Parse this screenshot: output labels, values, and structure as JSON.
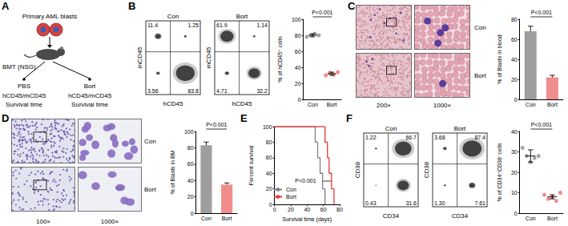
{
  "panels": [
    "A",
    "B",
    "C",
    "D",
    "E",
    "F"
  ],
  "diagram": {
    "source": "Primary AML blasts",
    "recipient": "BMT (NSG)",
    "arms": [
      {
        "treatment": "PBS",
        "readout": "hCD45/mCD45",
        "outcome": "Survival time"
      },
      {
        "treatment": "Bort",
        "readout": "hCD45/mCD45",
        "outcome": "Survival time"
      }
    ]
  },
  "flow": [
    {
      "xlabel": "hCD45",
      "ylabel": "mCD45",
      "plots": [
        {
          "title": "Con",
          "quadrants": {
            "upper_left": "11.4",
            "upper_right": "1.25",
            "lower_left": "3.56",
            "lower_right": "83.8"
          }
        },
        {
          "title": "Bort",
          "quadrants": {
            "upper_left": "61.9",
            "upper_right": "1.14",
            "lower_left": "4.71",
            "lower_right": "32.2"
          }
        }
      ]
    },
    {
      "xlabel": "CD34",
      "ylabel": "CD38",
      "plots": [
        {
          "title": "Con",
          "quadrants": {
            "upper_left": "1.22",
            "upper_right": "66.7",
            "lower_left": "0.43",
            "lower_right": "31.6"
          }
        },
        {
          "title": "Bort",
          "quadrants": {
            "upper_left": "3.68",
            "upper_right": "87.4",
            "lower_left": "1.30",
            "lower_right": "7.61"
          }
        }
      ]
    }
  ],
  "micrographs": [
    {
      "tissue": "blood",
      "magnifications": [
        "200×",
        "1000×"
      ],
      "rows": [
        "Con",
        "Bort"
      ]
    },
    {
      "tissue": "BM",
      "magnifications": [
        "100×",
        "1000×"
      ],
      "rows": [
        "Con",
        "Bort"
      ]
    }
  ],
  "chart_data": [
    {
      "type": "scatter",
      "ylabel": "% of hCD45⁺ cells",
      "categories": [
        "Con",
        "Bort"
      ],
      "colors": [
        "#8c8c8c",
        "#ef6b6b"
      ],
      "marker": "circle",
      "values": [
        80,
        32
      ],
      "errors": [
        2,
        2
      ],
      "points": [
        [
          78,
          80,
          82,
          80
        ],
        [
          30,
          33,
          31,
          34
        ]
      ],
      "ylim": [
        0,
        100
      ],
      "yticks": [
        0,
        20,
        40,
        60,
        80,
        100
      ],
      "grid": false,
      "annotation": "P<0.001"
    },
    {
      "type": "bar",
      "ylabel": "% of Blasts in blood",
      "categories": [
        "Con",
        "Bort"
      ],
      "colors": [
        "#9e9e9e",
        "#f08c8c"
      ],
      "values": [
        68,
        22
      ],
      "errors": [
        5,
        2
      ],
      "ylim": [
        0,
        80
      ],
      "yticks": [
        0,
        20,
        40,
        60,
        80
      ],
      "grid": false,
      "annotation": "P<0.001"
    },
    {
      "type": "bar",
      "ylabel": "% of Blasts in BM",
      "categories": [
        "Con",
        "Bort"
      ],
      "colors": [
        "#9e9e9e",
        "#f08c8c"
      ],
      "values": [
        83,
        35
      ],
      "errors": [
        4,
        2
      ],
      "ylim": [
        0,
        100
      ],
      "yticks": [
        0,
        20,
        40,
        60,
        80,
        100
      ],
      "grid": false,
      "annotation": "P<0.001"
    },
    {
      "type": "line",
      "xlabel": "Survival time (days)",
      "ylabel": "Percent survival",
      "line_style": "step",
      "legend": "lower left",
      "grid": false,
      "annotation": "P<0.001",
      "xlim": [
        0,
        80
      ],
      "xticks": [
        0,
        20,
        40,
        60,
        80
      ],
      "ylim": [
        0,
        100
      ],
      "yticks": [
        0,
        20,
        40,
        60,
        80,
        100
      ],
      "series": [
        {
          "name": "Con",
          "color": "#808080",
          "x": [
            0,
            50,
            53,
            56,
            59,
            62
          ],
          "values": [
            100,
            80,
            60,
            40,
            20,
            0
          ]
        },
        {
          "name": "Bort",
          "color": "#e53935",
          "x": [
            0,
            62,
            65,
            67,
            70,
            73
          ],
          "values": [
            100,
            80,
            60,
            40,
            20,
            0
          ]
        }
      ]
    },
    {
      "type": "scatter",
      "ylabel": "% of CD34⁺CD38⁻cells",
      "categories": [
        "Con",
        "Bort"
      ],
      "colors": [
        "#8c8c8c",
        "#ef6b6b"
      ],
      "marker": "circle",
      "values": [
        28,
        8
      ],
      "errors": [
        3,
        1
      ],
      "points": [
        [
          32,
          28,
          25,
          27,
          28
        ],
        [
          9,
          7,
          8,
          6,
          10
        ]
      ],
      "ylim": [
        0,
        40
      ],
      "yticks": [
        0,
        10,
        20,
        30,
        40
      ],
      "grid": false,
      "annotation": "P<0.001"
    }
  ]
}
